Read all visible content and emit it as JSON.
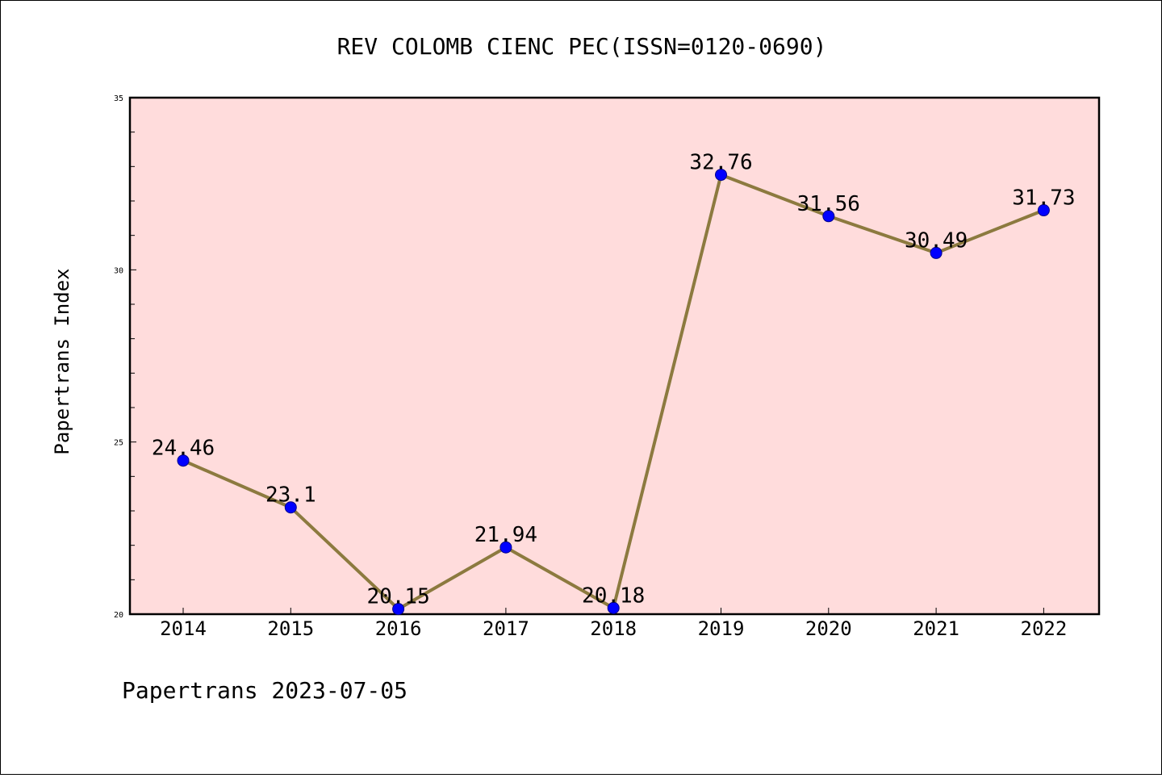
{
  "chart_data": {
    "type": "line",
    "title": "REV COLOMB CIENC PEC(ISSN=0120-0690)",
    "xlabel": "",
    "ylabel": "Papertrans Index",
    "categories": [
      "2014",
      "2015",
      "2016",
      "2017",
      "2018",
      "2019",
      "2020",
      "2021",
      "2022"
    ],
    "values": [
      24.46,
      23.1,
      20.15,
      21.94,
      20.18,
      32.76,
      31.56,
      30.49,
      31.73
    ],
    "data_labels": [
      "24.46",
      "23.1",
      "20.15",
      "21.94",
      "20.18",
      "32.76",
      "31.56",
      "30.49",
      "31.73"
    ],
    "ylim": [
      20,
      35
    ],
    "yticks": [
      "20",
      "25",
      "30",
      "35"
    ],
    "grid": false,
    "line_color": "#8c7a3f",
    "marker_color": "#0000ff",
    "plot_background": "#ffdcdc"
  },
  "footer": "Papertrans 2023-07-05"
}
